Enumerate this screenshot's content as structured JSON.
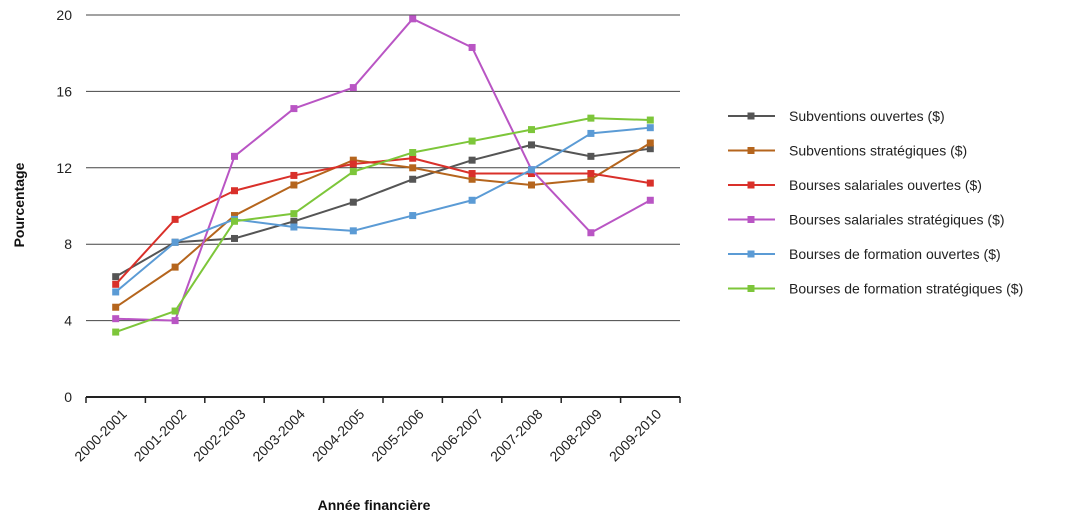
{
  "chart_data": {
    "type": "line",
    "title": "",
    "xlabel": "Année financière",
    "ylabel": "Pourcentage",
    "ylim": [
      0,
      20
    ],
    "yticks": [
      0,
      4,
      8,
      12,
      16,
      20
    ],
    "grid": true,
    "legend_position": "right",
    "categories": [
      "2000-2001",
      "2001-2002",
      "2002-2003",
      "2003-2004",
      "2004-2005",
      "2005-2006",
      "2006-2007",
      "2007-2008",
      "2008-2009",
      "2009-2010"
    ],
    "series": [
      {
        "name": "Subventions ouvertes ($)",
        "color": "#555555",
        "values": [
          6.3,
          8.1,
          8.3,
          9.2,
          10.2,
          11.4,
          12.4,
          13.2,
          12.6,
          13.0
        ]
      },
      {
        "name": "Subventions stratégiques ($)",
        "color": "#b5651d",
        "values": [
          4.7,
          6.8,
          9.5,
          11.1,
          12.4,
          12.0,
          11.4,
          11.1,
          11.4,
          13.3
        ]
      },
      {
        "name": "Bourses salariales ouvertes ($)",
        "color": "#d9302a",
        "values": [
          5.9,
          9.3,
          10.8,
          11.6,
          12.2,
          12.5,
          11.7,
          11.7,
          11.7,
          11.2
        ]
      },
      {
        "name": "Bourses salariales stratégiques ($)",
        "color": "#b955c4",
        "values": [
          4.1,
          4.0,
          12.6,
          15.1,
          16.2,
          19.8,
          18.3,
          11.9,
          8.6,
          10.3
        ]
      },
      {
        "name": "Bourses de formation ouvertes ($)",
        "color": "#5b9bd5",
        "values": [
          5.5,
          8.1,
          9.3,
          8.9,
          8.7,
          9.5,
          10.3,
          11.9,
          13.8,
          14.1
        ]
      },
      {
        "name": "Bourses de formation stratégiques ($)",
        "color": "#7dc63a",
        "values": [
          3.4,
          4.5,
          9.2,
          9.6,
          11.8,
          12.8,
          13.4,
          14.0,
          14.6,
          14.5
        ]
      }
    ]
  }
}
